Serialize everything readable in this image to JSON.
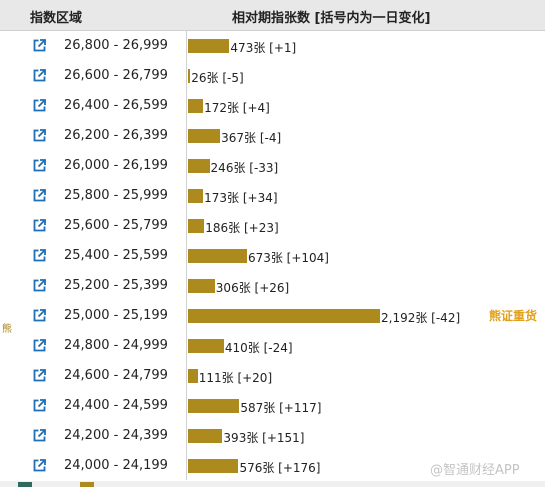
{
  "header": {
    "range_label": "指数区域",
    "count_label": "相对期指张数 [括号内为一日变化]"
  },
  "side_label": "熊",
  "marker_label": "熊证重货",
  "watermark": "@智通财经APP",
  "colors": {
    "bar": "#ad8a1e",
    "marker": "#e2a11a"
  },
  "chart_data": {
    "type": "bar",
    "orientation": "horizontal",
    "title": "相对期指张数 [括号内为一日变化]",
    "xlabel": "相对期指张数",
    "ylabel": "指数区域",
    "categories": [
      "26,800 - 26,999",
      "26,600 - 26,799",
      "26,400 - 26,599",
      "26,200 - 26,399",
      "26,000 - 26,199",
      "25,800 - 25,999",
      "25,600 - 25,799",
      "25,400 - 25,599",
      "25,200 - 25,399",
      "25,000 - 25,199",
      "24,800 - 24,999",
      "24,600 - 24,799",
      "24,400 - 24,599",
      "24,200 - 24,399",
      "24,000 - 24,199"
    ],
    "values": [
      473,
      26,
      172,
      367,
      246,
      173,
      186,
      673,
      306,
      2192,
      410,
      111,
      587,
      393,
      576
    ],
    "changes": [
      "+1",
      "-5",
      "+4",
      "-4",
      "-33",
      "+34",
      "+23",
      "+104",
      "+26",
      "-42",
      "-24",
      "+20",
      "+117",
      "+151",
      "+176"
    ],
    "value_labels": [
      "473张 [+1]",
      "26张 [-5]",
      "172张 [+4]",
      "367张 [-4]",
      "246张 [-33]",
      "173张 [+34]",
      "186张 [+23]",
      "673张 [+104]",
      "306张 [+26]",
      "2,192张 [-42]",
      "410张 [-24]",
      "111张 [+20]",
      "587张 [+117]",
      "393张 [+151]",
      "576张 [+176]"
    ],
    "highlight_index": 9,
    "xlim": [
      0,
      2192
    ],
    "grid": false
  }
}
